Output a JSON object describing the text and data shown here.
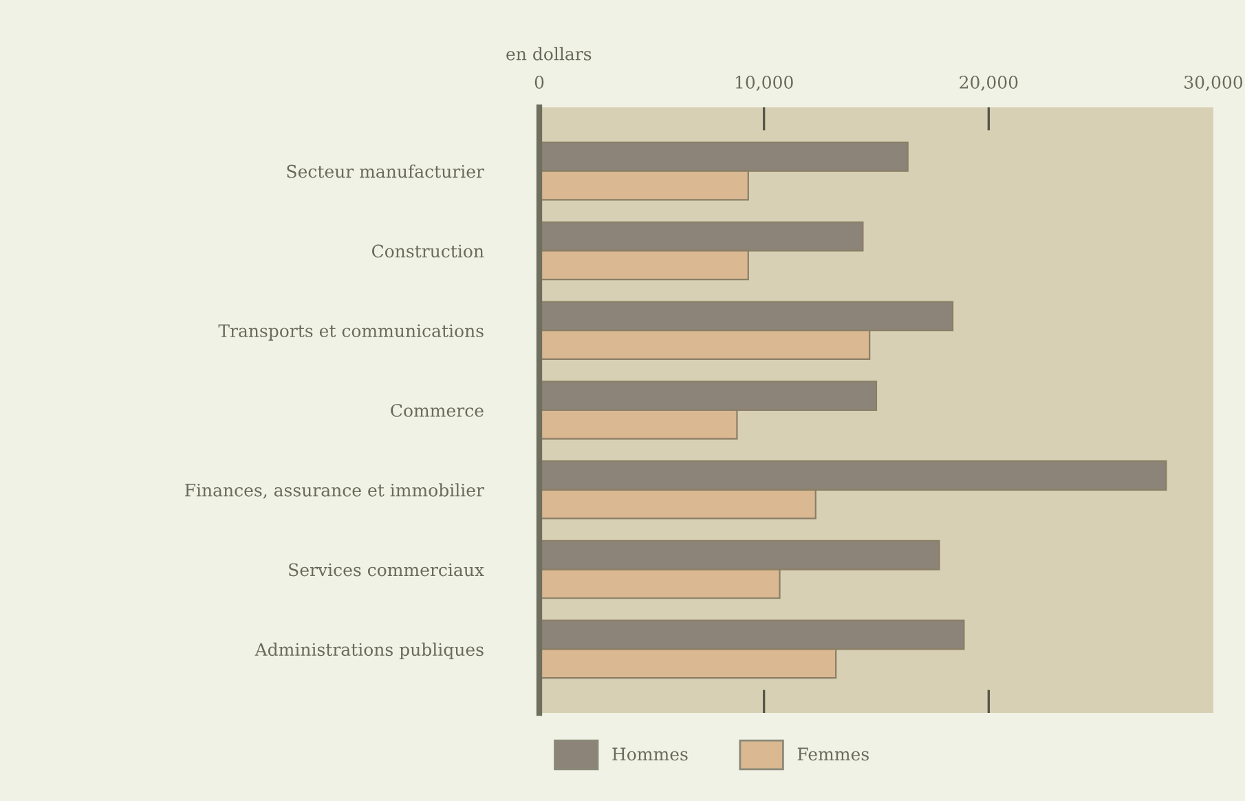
{
  "chart_data": {
    "type": "bar",
    "orientation": "horizontal",
    "xlabel": "en dollars",
    "categories": [
      "Secteur manufacturier",
      "Construction",
      "Transports et communications",
      "Commerce",
      "Finances, assurance et immobilier",
      "Services commerciaux",
      "Administrations publiques"
    ],
    "series": [
      {
        "name": "Hommes",
        "color": "#8c8478",
        "values": [
          16400,
          14400,
          18400,
          15000,
          27900,
          17800,
          18900
        ]
      },
      {
        "name": "Femmes",
        "color": "#d9b892",
        "values": [
          9300,
          9300,
          14700,
          8800,
          12300,
          10700,
          13200
        ]
      }
    ],
    "xlim": [
      0,
      30000
    ],
    "xticks": [
      0,
      {
        "value": 10000,
        "label": "10,000"
      },
      {
        "value": 20000,
        "label": "20,000"
      },
      {
        "value": 30000,
        "label": "30,000"
      }
    ],
    "grid": false,
    "legend": "bottom"
  }
}
